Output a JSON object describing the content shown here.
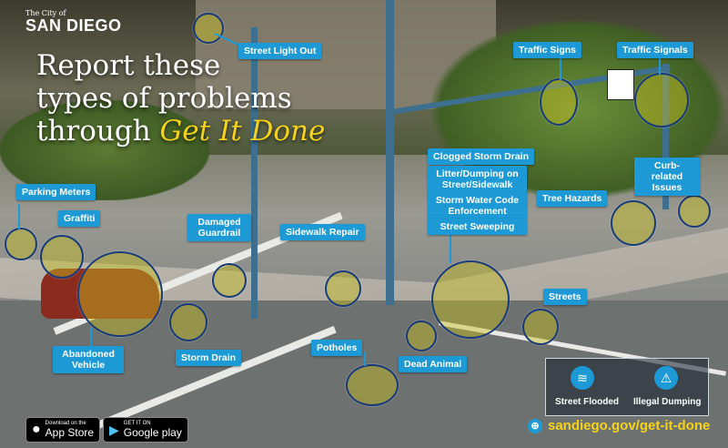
{
  "logo": {
    "prefix": "The City of",
    "name": "SAN DIEGO"
  },
  "headline": {
    "line1": "Report these",
    "line2": "types of problems",
    "line3_prefix": "through ",
    "line3_emphasis": "Get It Done"
  },
  "labels": {
    "street_light_out": "Street Light Out",
    "traffic_signs": "Traffic Signs",
    "traffic_signals": "Traffic Signals",
    "parking_meters": "Parking Meters",
    "graffiti": "Graffiti",
    "damaged_guardrail": "Damaged Guardrail",
    "sidewalk_repair": "Sidewalk Repair",
    "clogged_storm_drain": "Clogged Storm Drain",
    "litter_dumping": "Litter/Dumping on Street/Sidewalk",
    "storm_water": "Storm Water Code Enforcement",
    "street_sweeping": "Street Sweeping",
    "tree_hazards": "Tree Hazards",
    "curb_related": "Curb-related Issues",
    "streets": "Streets",
    "abandoned_vehicle": "Abandoned Vehicle",
    "storm_drain": "Storm Drain",
    "potholes": "Potholes",
    "dead_animal": "Dead Animal"
  },
  "legend": {
    "street_flooded": "Street Flooded",
    "illegal_dumping": "Illegal Dumping"
  },
  "stores": {
    "apple_small": "Download on the",
    "apple_big": "App Store",
    "google_small": "GET IT ON",
    "google_big": "Google play"
  },
  "url": "sandiego.gov/get-it-done",
  "colors": {
    "label_blue": "#1d9ad6",
    "highlight_yellow": "#f6d21b",
    "circle_fill": "#c8be1e"
  }
}
